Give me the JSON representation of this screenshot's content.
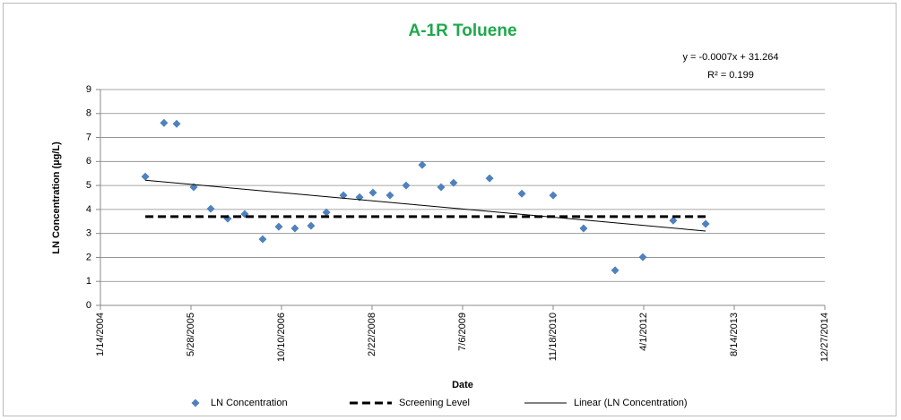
{
  "chart_data": {
    "type": "scatter",
    "title": "A-1R Toluene",
    "x_label": "Date",
    "y_label": "LN Concentration (µg/L)",
    "annotations": [
      "y = -0.0007x + 31.264",
      "R² = 0.199"
    ],
    "xlim": [
      38000,
      42000
    ],
    "xticks": [
      {
        "value": 38000,
        "label": "1/14/2004"
      },
      {
        "value": 38500,
        "label": "5/28/2005"
      },
      {
        "value": 39000,
        "label": "10/10/2006"
      },
      {
        "value": 39500,
        "label": "2/22/2008"
      },
      {
        "value": 40000,
        "label": "7/6/2009"
      },
      {
        "value": 40500,
        "label": "11/18/2010"
      },
      {
        "value": 41000,
        "label": "4/1/2012"
      },
      {
        "value": 41500,
        "label": "8/14/2013"
      },
      {
        "value": 42000,
        "label": "12/27/2014"
      }
    ],
    "ylim": [
      0,
      9
    ],
    "yticks": [
      0,
      1,
      2,
      3,
      4,
      5,
      6,
      7,
      8,
      9
    ],
    "grid": true,
    "legend": "bottom",
    "series": [
      {
        "name": "LN Concentration",
        "color": "#4f81bd",
        "mode": "markers",
        "x": [
          38248,
          38351,
          38421,
          38515,
          38609,
          38703,
          38797,
          38896,
          38985,
          39074,
          39163,
          39248,
          39342,
          39431,
          39505,
          39599,
          39688,
          39777,
          39881,
          39950,
          40149,
          40327,
          40500,
          40668,
          40842,
          40995,
          41163,
          41342
        ],
        "values": [
          5.37,
          7.61,
          7.57,
          4.93,
          4.03,
          3.62,
          3.81,
          2.76,
          3.28,
          3.21,
          3.32,
          3.88,
          4.59,
          4.51,
          4.7,
          4.59,
          5.0,
          5.86,
          4.93,
          5.11,
          5.3,
          4.66,
          4.59,
          3.21,
          1.46,
          2.01,
          3.54,
          3.4
        ]
      },
      {
        "name": "Screening Level",
        "color": "#000000",
        "mode": "dashed",
        "x": [
          38248,
          41342
        ],
        "values": [
          3.7,
          3.7
        ]
      },
      {
        "name": "Linear (LN Concentration)",
        "color": "#000000",
        "mode": "line",
        "x": [
          38248,
          41342
        ],
        "values": [
          5.22,
          3.1
        ]
      }
    ]
  }
}
